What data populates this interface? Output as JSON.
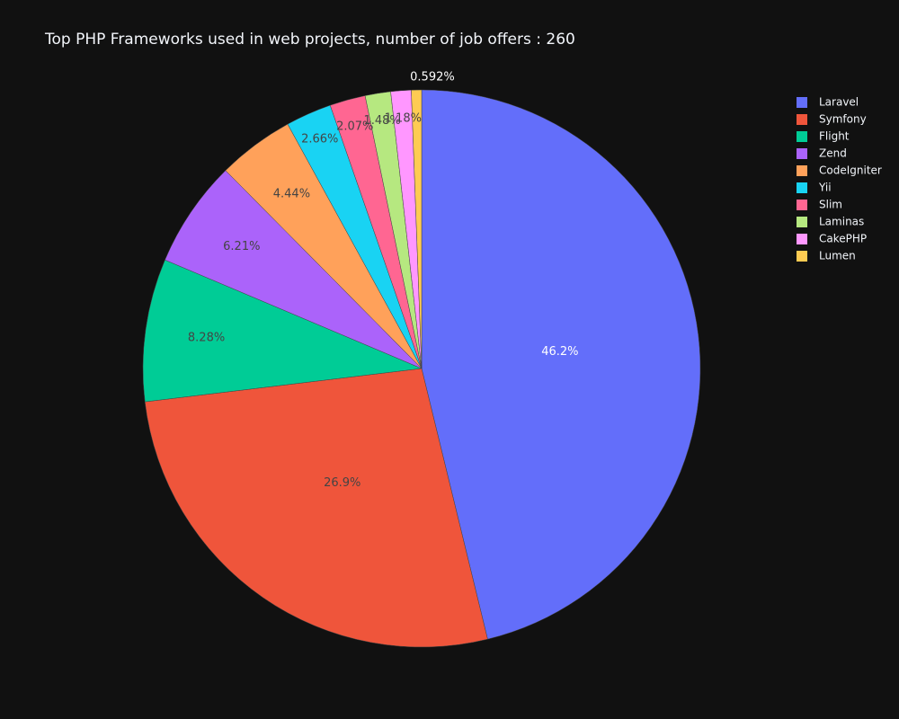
{
  "chart_data": {
    "type": "pie",
    "title": "Top PHP Frameworks used in web projects, number of job offers : 260",
    "legend_position": "top-right",
    "direction": "clockwise",
    "start_angle": "12 o'clock",
    "slices": [
      {
        "label": "Laravel",
        "value": 46.2,
        "text": "46.2%",
        "color": "#636efa"
      },
      {
        "label": "Symfony",
        "value": 26.9,
        "text": "26.9%",
        "color": "#ef553b"
      },
      {
        "label": "Flight",
        "value": 8.28,
        "text": "8.28%",
        "color": "#00cc96"
      },
      {
        "label": "Zend",
        "value": 6.21,
        "text": "6.21%",
        "color": "#ab63fa"
      },
      {
        "label": "CodeIgniter",
        "value": 4.44,
        "text": "4.44%",
        "color": "#ffa15a"
      },
      {
        "label": "Yii",
        "value": 2.66,
        "text": "2.66%",
        "color": "#19d3f3"
      },
      {
        "label": "Slim",
        "value": 2.07,
        "text": "2.07%",
        "color": "#ff6692"
      },
      {
        "label": "Laminas",
        "value": 1.48,
        "text": "1.48%",
        "color": "#b6e880"
      },
      {
        "label": "CakePHP",
        "value": 1.18,
        "text": "1.18%",
        "color": "#ff97ff"
      },
      {
        "label": "Lumen",
        "value": 0.592,
        "text": "0.592%",
        "color": "#fecb52"
      }
    ]
  }
}
